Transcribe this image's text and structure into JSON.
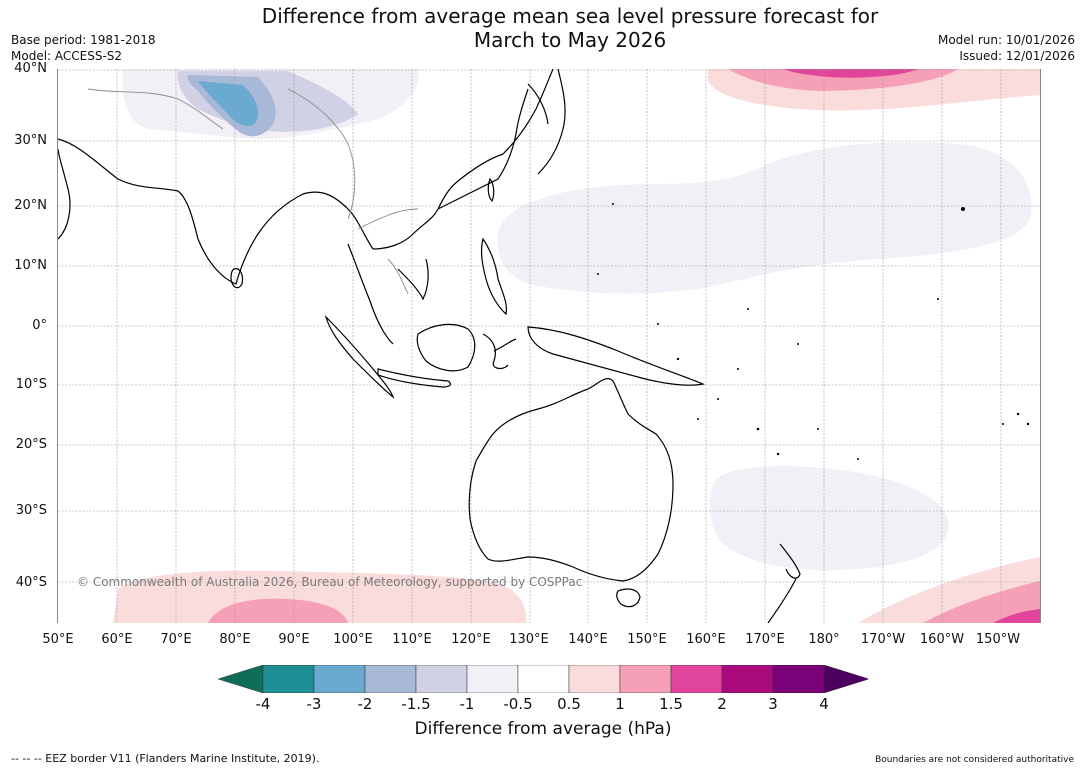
{
  "title": {
    "line1": "Difference from average mean sea level pressure forecast for",
    "line2": "March to May 2026"
  },
  "meta_left": {
    "base_period": "Base period: 1981-2018",
    "model": "Model: ACCESS-S2"
  },
  "meta_right": {
    "model_run": "Model run: 10/01/2026",
    "issued": "Issued: 12/01/2026"
  },
  "map": {
    "lat_labels": [
      "40°N",
      "30°N",
      "20°N",
      "10°N",
      "0°",
      "10°S",
      "20°S",
      "30°S",
      "40°S"
    ],
    "lon_labels": [
      "50°E",
      "60°E",
      "70°E",
      "80°E",
      "90°E",
      "100°E",
      "110°E",
      "120°E",
      "130°E",
      "140°E",
      "150°E",
      "160°E",
      "170°E",
      "180°",
      "170°W",
      "160°W",
      "150°W"
    ],
    "copyright": "© Commonwealth of Australia 2026, Bureau of Meteorology, supported by COSPPac"
  },
  "colorbar": {
    "label": "Difference from average (hPa)",
    "ticks": [
      "-4",
      "-3",
      "-2",
      "-1.5",
      "-1",
      "-0.5",
      "0.5",
      "1",
      "1.5",
      "2",
      "3",
      "4"
    ],
    "colors": [
      "#0e6e5a",
      "#1f8f96",
      "#6aa9d0",
      "#a8b9d8",
      "#d0d1e4",
      "#f2eff6",
      "#ffffff",
      "#fbdcdc",
      "#f6a0b8",
      "#e0459b",
      "#ab0a7e",
      "#7a0177",
      "#4d0060"
    ]
  },
  "footer": {
    "eez": "--  --  -- EEZ border V11 (Flanders Marine Institute, 2019).",
    "boundaries": "Boundaries are not considered authoritative"
  }
}
